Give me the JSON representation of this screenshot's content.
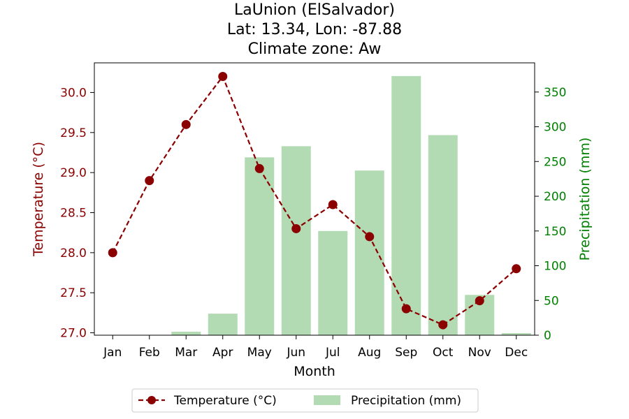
{
  "chart_data": {
    "type": "bar+line",
    "title_lines": [
      "LaUnion (ElSalvador)",
      "Lat: 13.34, Lon: -87.88",
      "Climate zone: Aw"
    ],
    "xlabel": "Month",
    "ylabel_left": "Temperature (°C)",
    "ylabel_right": "Precipitation (mm)",
    "categories": [
      "Jan",
      "Feb",
      "Mar",
      "Apr",
      "May",
      "Jun",
      "Jul",
      "Aug",
      "Sep",
      "Oct",
      "Nov",
      "Dec"
    ],
    "temperature": {
      "name": "Temperature (°C)",
      "values": [
        28.0,
        28.9,
        29.6,
        30.2,
        29.05,
        28.3,
        28.6,
        28.2,
        27.3,
        27.1,
        27.4,
        27.8
      ],
      "ylim": [
        26.97,
        30.37
      ],
      "ticks": [
        27.0,
        27.5,
        28.0,
        28.5,
        29.0,
        29.5,
        30.0
      ],
      "tick_labels": [
        "27.0",
        "27.5",
        "28.0",
        "28.5",
        "29.0",
        "29.5",
        "30.0"
      ],
      "color": "#8b0000",
      "style": "dashed-with-markers"
    },
    "precipitation": {
      "name": "Precipitation (mm)",
      "values": [
        0,
        0,
        5,
        31,
        256,
        272,
        150,
        237,
        373,
        288,
        58,
        3
      ],
      "ylim": [
        0,
        392
      ],
      "ticks": [
        0,
        50,
        100,
        150,
        200,
        250,
        300,
        350
      ],
      "tick_labels": [
        "0",
        "50",
        "100",
        "150",
        "200",
        "250",
        "300",
        "350"
      ],
      "color": "#b2dab3",
      "axis_color": "#008000"
    },
    "legend": {
      "placement": "bottom-center",
      "entries": [
        "Temperature (°C)",
        "Precipitation (mm)"
      ]
    },
    "grid": false
  }
}
